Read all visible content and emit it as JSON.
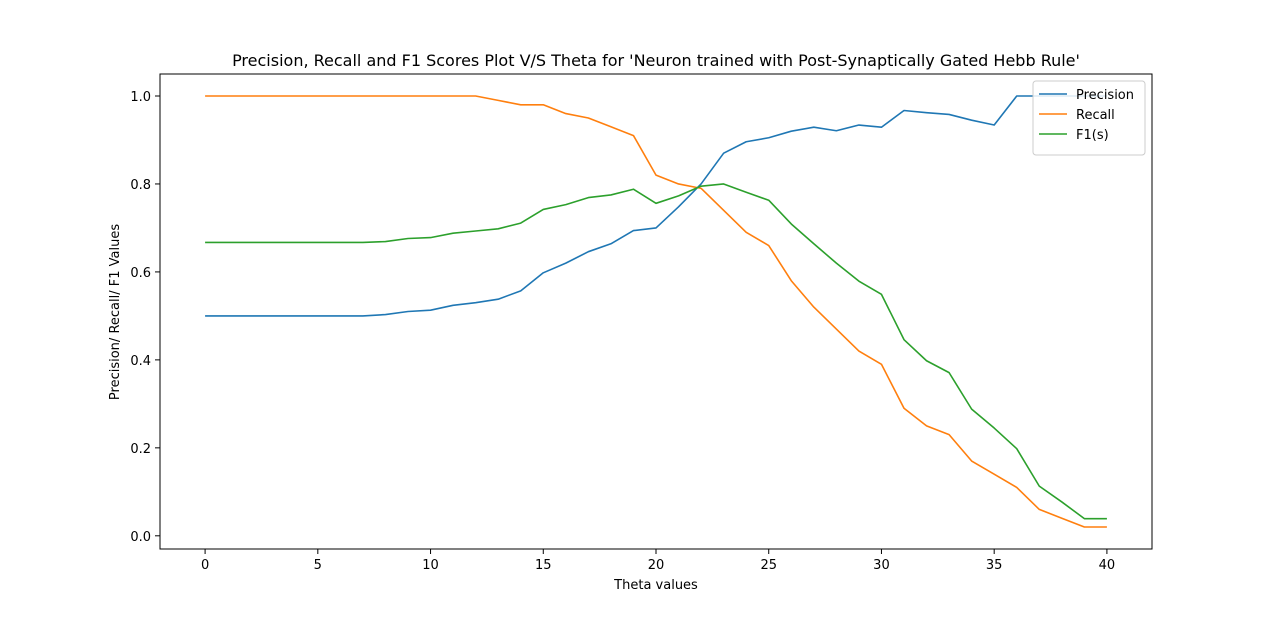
{
  "chart_data": {
    "type": "line",
    "title": "Precision, Recall and F1 Scores Plot V/S Theta for 'Neuron trained with Post-Synaptically Gated Hebb Rule'",
    "xlabel": "Theta values",
    "ylabel": "Precision/ Recall/ F1 Values",
    "xlim": [
      -2,
      42
    ],
    "ylim": [
      -0.03,
      1.05
    ],
    "xticks": [
      0,
      5,
      10,
      15,
      20,
      25,
      30,
      35,
      40
    ],
    "yticks": [
      0.0,
      0.2,
      0.4,
      0.6,
      0.8,
      1.0
    ],
    "xtick_labels": [
      "0",
      "5",
      "10",
      "15",
      "20",
      "25",
      "30",
      "35",
      "40"
    ],
    "ytick_labels": [
      "0.0",
      "0.2",
      "0.4",
      "0.6",
      "0.8",
      "1.0"
    ],
    "legend_position": "top-right",
    "grid": false,
    "x": [
      0,
      1,
      2,
      3,
      4,
      5,
      6,
      7,
      8,
      9,
      10,
      11,
      12,
      13,
      14,
      15,
      16,
      17,
      18,
      19,
      20,
      21,
      22,
      23,
      24,
      25,
      26,
      27,
      28,
      29,
      30,
      31,
      32,
      33,
      34,
      35,
      36,
      37,
      38,
      39,
      40
    ],
    "series": [
      {
        "name": "Precision",
        "color": "#1f77b4",
        "values": [
          0.5,
          0.5,
          0.5,
          0.5,
          0.5,
          0.5,
          0.5,
          0.5,
          0.503,
          0.51,
          0.513,
          0.524,
          0.53,
          0.538,
          0.557,
          0.598,
          0.62,
          0.646,
          0.664,
          0.694,
          0.7,
          0.748,
          0.8,
          0.87,
          0.896,
          0.905,
          0.92,
          0.929,
          0.921,
          0.934,
          0.929,
          0.967,
          0.962,
          0.958,
          0.945,
          0.934,
          1.0,
          1.0,
          1.0,
          1.0,
          1.0
        ]
      },
      {
        "name": "Recall",
        "color": "#ff7f0e",
        "values": [
          1.0,
          1.0,
          1.0,
          1.0,
          1.0,
          1.0,
          1.0,
          1.0,
          1.0,
          1.0,
          1.0,
          1.0,
          1.0,
          0.99,
          0.98,
          0.98,
          0.96,
          0.95,
          0.93,
          0.91,
          0.82,
          0.8,
          0.79,
          0.74,
          0.69,
          0.66,
          0.58,
          0.52,
          0.47,
          0.42,
          0.39,
          0.29,
          0.25,
          0.23,
          0.17,
          0.14,
          0.11,
          0.06,
          0.04,
          0.02,
          0.02
        ]
      },
      {
        "name": "F1(s)",
        "color": "#2ca02c",
        "values": [
          0.667,
          0.667,
          0.667,
          0.667,
          0.667,
          0.667,
          0.667,
          0.667,
          0.669,
          0.676,
          0.678,
          0.688,
          0.693,
          0.698,
          0.711,
          0.742,
          0.753,
          0.769,
          0.775,
          0.788,
          0.756,
          0.773,
          0.795,
          0.8,
          0.781,
          0.763,
          0.709,
          0.664,
          0.62,
          0.579,
          0.549,
          0.446,
          0.398,
          0.371,
          0.288,
          0.245,
          0.198,
          0.113,
          0.077,
          0.039,
          0.039
        ]
      }
    ]
  }
}
